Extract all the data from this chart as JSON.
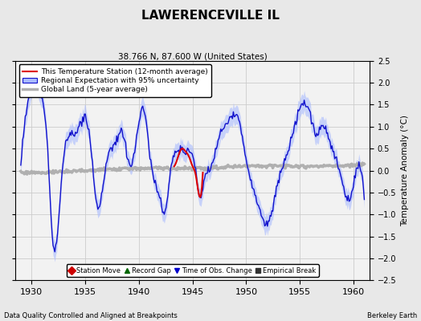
{
  "title": "LAWERENCEVILLE IL",
  "subtitle": "38.766 N, 87.600 W (United States)",
  "ylabel": "Temperature Anomaly (°C)",
  "xlabel_left": "Data Quality Controlled and Aligned at Breakpoints",
  "xlabel_right": "Berkeley Earth",
  "xlim": [
    1928.5,
    1961.5
  ],
  "ylim": [
    -2.5,
    2.5
  ],
  "yticks": [
    -2.5,
    -2,
    -1.5,
    -1,
    -0.5,
    0,
    0.5,
    1,
    1.5,
    2,
    2.5
  ],
  "xticks": [
    1930,
    1935,
    1940,
    1945,
    1950,
    1955,
    1960
  ],
  "background_color": "#e8e8e8",
  "plot_bg": "#f0f0f0",
  "legend_items": [
    {
      "label": "This Temperature Station (12-month average)",
      "color": "#dd0000",
      "lw": 1.5
    },
    {
      "label": "Regional Expectation with 95% uncertainty",
      "color": "#2222cc",
      "lw": 1.2
    },
    {
      "label": "Global Land (5-year average)",
      "color": "#aaaaaa",
      "lw": 2.5
    }
  ],
  "marker_items": [
    {
      "label": "Station Move",
      "marker": "D",
      "color": "#cc0000"
    },
    {
      "label": "Record Gap",
      "marker": "^",
      "color": "#006600"
    },
    {
      "label": "Time of Obs. Change",
      "marker": "v",
      "color": "#0000cc"
    },
    {
      "label": "Empirical Break",
      "marker": "s",
      "color": "#333333"
    }
  ]
}
